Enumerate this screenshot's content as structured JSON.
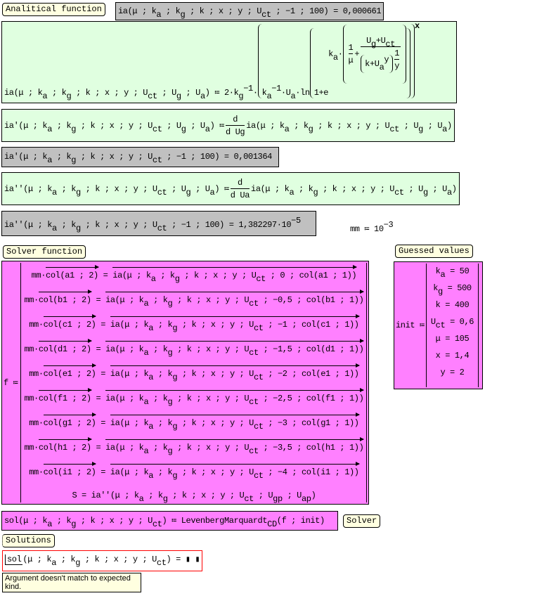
{
  "labels": {
    "analytical": "Analitical function",
    "solver_function": "Solver function",
    "guessed_values": "Guessed values",
    "solver": "Solver",
    "solutions": "Solutions"
  },
  "results": {
    "ia_eval": "ia(μ ; k_{a} ; k_{g} ; k ; x ; y ; U_{ct} ; −1 ; 100) = 0,000661",
    "ia1_eval": "ia'(μ ; k_{a} ; k_{g} ; k ; x ; y ; U_{ct} ; −1 ; 100) = 0,001364",
    "ia2_eval": "ia''(μ ; k_{a} ; k_{g} ; k ; x ; y ; U_{ct} ; −1 ; 100) = 1,382297·10^{−5}"
  },
  "definitions": {
    "ia_lhs": "ia(μ ; k_{a} ; k_{g} ; k ; x ; y ; U_{ct} ; U_{g} ; U_{a}) ≔ 2·k_{g}^{−1}·",
    "ia_inner": "k_{a}^{−1}·U_{a}·ln",
    "ia_one_plus_e": "1+e",
    "ia_exp_ka": "k_{a}·",
    "ia_frac1_num": "1",
    "ia_frac1_den": "μ",
    "ia_plus": "+",
    "ia_frac2_num": "U_{g}+U_{ct}",
    "ia_frac2_den": "k+U_{a}^{y}",
    "ia_frac3_num": "1",
    "ia_frac3_den": "y",
    "ia_outer_exp": "x",
    "ia1_def": "ia'(μ ; k_{a} ; k_{g} ; k ; x ; y ; U_{ct} ; U_{g} ; U_{a}) ≔ ",
    "ia1_d_num": "d",
    "ia1_d_den": "d U_{g}",
    "ia1_rhs": "ia(μ ; k_{a} ; k_{g} ; k ; x ; y ; U_{ct} ; U_{g} ; U_{a})",
    "ia2_def": "ia''(μ ; k_{a} ; k_{g} ; k ; x ; y ; U_{ct} ; U_{g} ; U_{a}) ≔ ",
    "ia2_d_num": "d",
    "ia2_d_den": "d U_{a}",
    "ia2_rhs": "ia(μ ; k_{a} ; k_{g} ; k ; x ; y ; U_{ct} ; U_{g} ; U_{a})",
    "mm": "mm ≔ 10^{−3}"
  },
  "solver": {
    "f_assign": "f ≔",
    "rows": [
      "mm·~{col(a1 ; 2)} = ~{ia(μ ; k_{a} ; k_{g} ; k ; x ; y ; U_{ct} ; 0 ; col(a1 ; 1))}",
      "mm·~{col(b1 ; 2)} = ~{ia(μ ; k_{a} ; k_{g} ; k ; x ; y ; U_{ct} ; −0,5 ; col(b1 ; 1))}",
      "mm·~{col(c1 ; 2)} = ~{ia(μ ; k_{a} ; k_{g} ; k ; x ; y ; U_{ct} ; −1 ; col(c1 ; 1))}",
      "mm·~{col(d1 ; 2)} = ~{ia(μ ; k_{a} ; k_{g} ; k ; x ; y ; U_{ct} ; −1,5 ; col(d1 ; 1))}",
      "mm·~{col(e1 ; 2)} = ~{ia(μ ; k_{a} ; k_{g} ; k ; x ; y ; U_{ct} ; −2 ; col(e1 ; 1))}",
      "mm·~{col(f1 ; 2)} = ~{ia(μ ; k_{a} ; k_{g} ; k ; x ; y ; U_{ct} ; −2,5 ; col(f1 ; 1))}",
      "mm·~{col(g1 ; 2)} = ~{ia(μ ; k_{a} ; k_{g} ; k ; x ; y ; U_{ct} ; −3 ; col(g1 ; 1))}",
      "mm·~{col(h1 ; 2)} = ~{ia(μ ; k_{a} ; k_{g} ; k ; x ; y ; U_{ct} ; −3,5 ; col(h1 ; 1))}",
      "mm·~{col(i1 ; 2)} = ~{ia(μ ; k_{a} ; k_{g} ; k ; x ; y ; U_{ct} ; −4 ; col(i1 ; 1))}",
      "S = ia''(μ ; k_{a} ; k_{g} ; k ; x ; y ; U_{ct} ; U_{gp} ; U_{ap})"
    ],
    "init_assign": "init ≔",
    "init_values": [
      "k_{a} = 50",
      "k_{g} = 500",
      "k = 400",
      "U_{ct} = 0,6",
      "μ = 105",
      "x = 1,4",
      "y = 2"
    ],
    "sol_def": "sol(μ ; k_{a} ; k_{g} ; k ; x ; y ; U_{ct}) ≔ LevenbergMarquardt_{CD}(f ; init)"
  },
  "solutions": {
    "sol_name": "sol",
    "sol_args": "(μ ; k_{a} ; k_{g} ; k ; x ; y ; U_{ct}) = ▮ ▮",
    "error": "Argument doesn't match to expected kind."
  },
  "colors": {
    "gray_region": "#c0c0c0",
    "green_region": "#e0ffe0",
    "pink_region": "#ff80ff",
    "label_bg": "#ffffe0",
    "error_border": "#ff0000"
  }
}
